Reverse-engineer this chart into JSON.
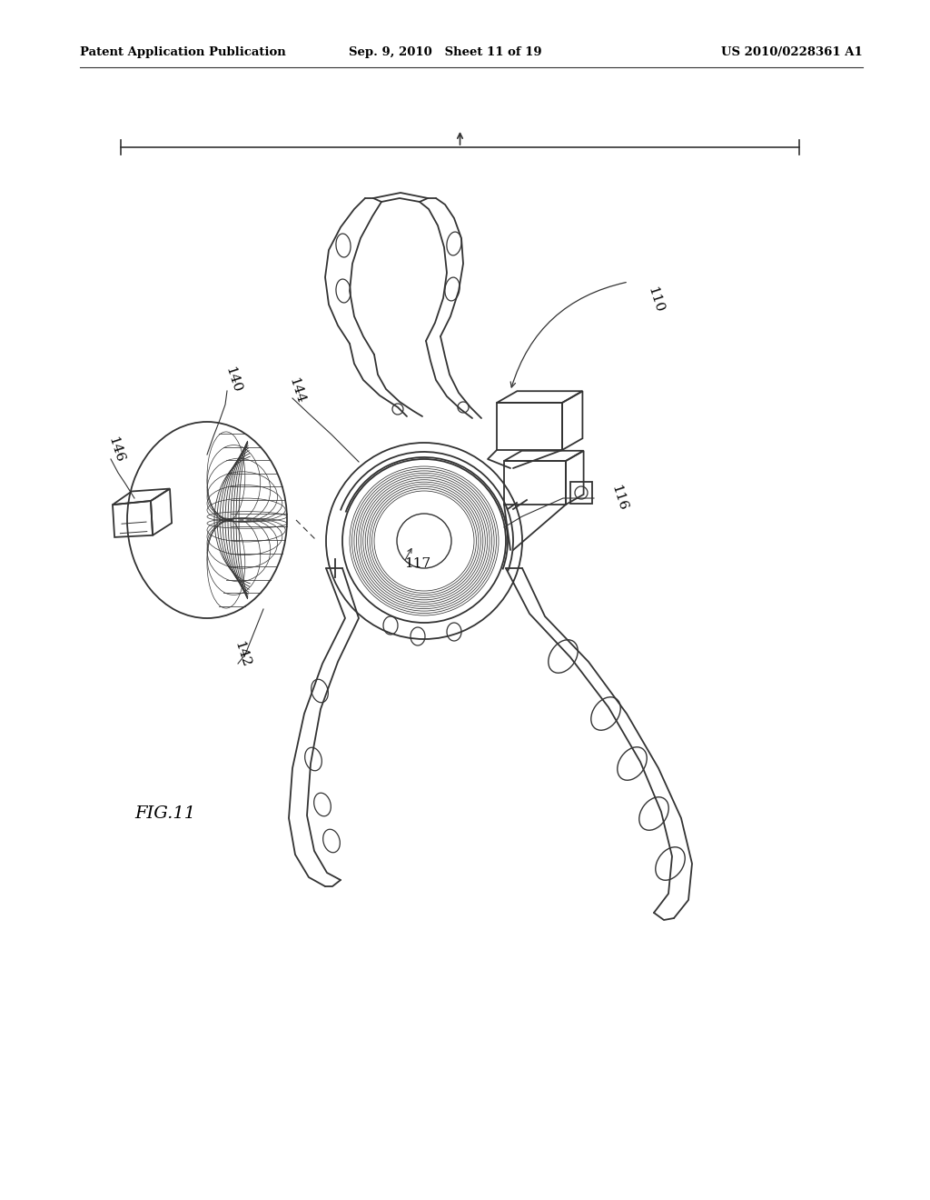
{
  "background_color": "#ffffff",
  "header_left": "Patent Application Publication",
  "header_center": "Sep. 9, 2010   Sheet 11 of 19",
  "header_right": "US 2010/0228361 A1",
  "figure_label": "FIG.11",
  "line_color": "#333333",
  "text_color": "#000000",
  "figsize": [
    10.24,
    13.2
  ],
  "dpi": 100
}
